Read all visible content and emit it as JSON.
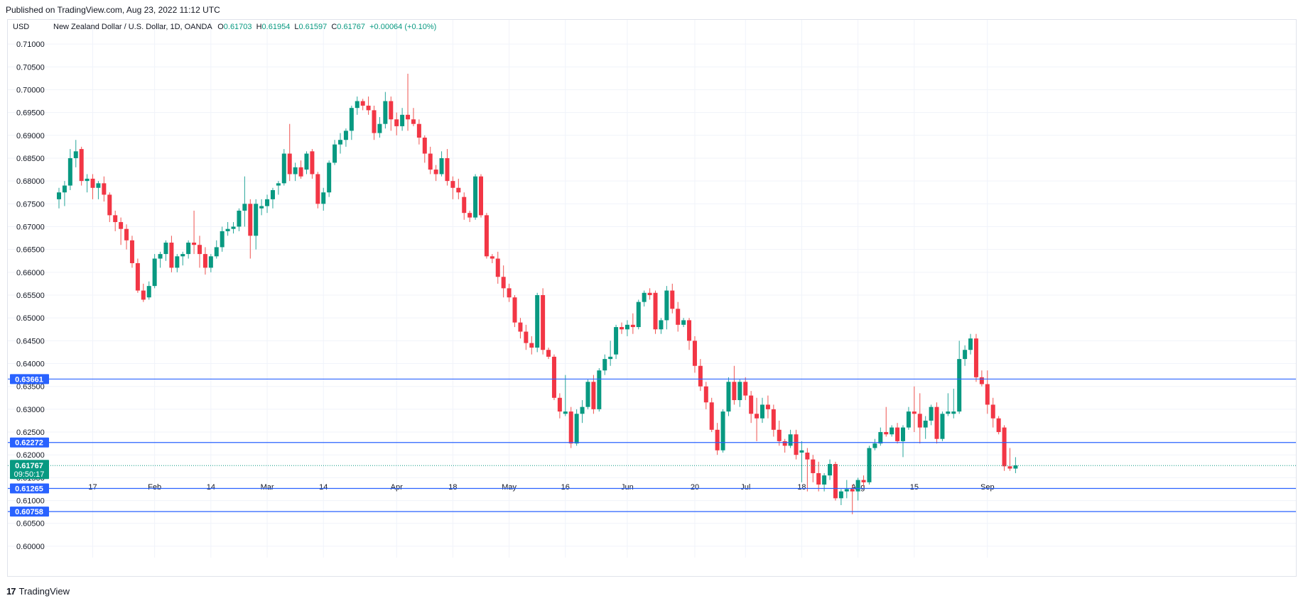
{
  "header": {
    "published": "Published on TradingView.com, Aug 23, 2022 11:12 UTC"
  },
  "footer": {
    "logo_mark": "17",
    "brand": "TradingView"
  },
  "colors": {
    "up": "#26a69a",
    "down": "#ef5350",
    "upbody": "#089981",
    "downbody": "#f23645",
    "hline": "#2962ff",
    "grid": "#f0f3fa",
    "text": "#131722"
  },
  "legend": {
    "currency": "USD",
    "symbol": "New Zealand Dollar / U.S. Dollar, 1D, OANDA",
    "o_label": "O",
    "o": "0.61703",
    "h_label": "H",
    "h": "0.61954",
    "l_label": "L",
    "l": "0.61597",
    "c_label": "C",
    "c": "0.61767",
    "change": "+0.00064 (+0.10%)"
  },
  "chart_data": {
    "type": "candlestick",
    "title": "New Zealand Dollar / U.S. Dollar, 1D, OANDA",
    "ylabel": "USD",
    "ylim": [
      0.5975,
      0.7125
    ],
    "yticks": [
      "0.71000",
      "0.70500",
      "0.70000",
      "0.69500",
      "0.69000",
      "0.68500",
      "0.68000",
      "0.67500",
      "0.67000",
      "0.66500",
      "0.66000",
      "0.65500",
      "0.65000",
      "0.64500",
      "0.64000",
      "0.63500",
      "0.63000",
      "0.62500",
      "0.62000",
      "0.61500",
      "0.61000",
      "0.60500",
      "0.60000"
    ],
    "xticks": [
      {
        "label": "17",
        "bar": 6
      },
      {
        "label": "Feb",
        "bar": 17
      },
      {
        "label": "14",
        "bar": 27
      },
      {
        "label": "Mar",
        "bar": 37
      },
      {
        "label": "14",
        "bar": 47
      },
      {
        "label": "Apr",
        "bar": 60
      },
      {
        "label": "18",
        "bar": 70
      },
      {
        "label": "May",
        "bar": 80
      },
      {
        "label": "16",
        "bar": 90
      },
      {
        "label": "Jun",
        "bar": 101
      },
      {
        "label": "20",
        "bar": 113
      },
      {
        "label": "Jul",
        "bar": 122
      },
      {
        "label": "18",
        "bar": 132
      },
      {
        "label": "Aug",
        "bar": 142
      },
      {
        "label": "15",
        "bar": 152
      },
      {
        "label": "Sep",
        "bar": 165
      }
    ],
    "last_price": "0.61767",
    "countdown": "09:50:17",
    "hlines": [
      {
        "value": 0.63661,
        "label": "0.63661"
      },
      {
        "value": 0.62272,
        "label": "0.62272"
      },
      {
        "value": 0.61265,
        "label": "0.61265"
      },
      {
        "value": 0.60758,
        "label": "0.60758"
      }
    ],
    "candles": [
      [
        0.676,
        0.6785,
        0.674,
        0.6775
      ],
      [
        0.6775,
        0.68,
        0.6745,
        0.679
      ],
      [
        0.679,
        0.687,
        0.678,
        0.685
      ],
      [
        0.685,
        0.689,
        0.683,
        0.6865
      ],
      [
        0.687,
        0.6875,
        0.679,
        0.68
      ],
      [
        0.68,
        0.6815,
        0.6775,
        0.6805
      ],
      [
        0.6805,
        0.6815,
        0.676,
        0.6785
      ],
      [
        0.6785,
        0.68,
        0.676,
        0.6795
      ],
      [
        0.6795,
        0.681,
        0.6755,
        0.677
      ],
      [
        0.677,
        0.6775,
        0.671,
        0.6725
      ],
      [
        0.6725,
        0.6735,
        0.669,
        0.671
      ],
      [
        0.671,
        0.672,
        0.666,
        0.6695
      ],
      [
        0.6695,
        0.6705,
        0.665,
        0.667
      ],
      [
        0.667,
        0.668,
        0.661,
        0.662
      ],
      [
        0.662,
        0.663,
        0.6555,
        0.656
      ],
      [
        0.656,
        0.6575,
        0.6535,
        0.654
      ],
      [
        0.6545,
        0.658,
        0.654,
        0.657
      ],
      [
        0.657,
        0.664,
        0.6565,
        0.663
      ],
      [
        0.663,
        0.6645,
        0.661,
        0.664
      ],
      [
        0.664,
        0.667,
        0.6625,
        0.6665
      ],
      [
        0.6665,
        0.668,
        0.66,
        0.661
      ],
      [
        0.661,
        0.664,
        0.66,
        0.6635
      ],
      [
        0.6635,
        0.6645,
        0.6615,
        0.664
      ],
      [
        0.664,
        0.667,
        0.663,
        0.6665
      ],
      [
        0.6665,
        0.6735,
        0.664,
        0.666
      ],
      [
        0.666,
        0.668,
        0.661,
        0.664
      ],
      [
        0.664,
        0.6655,
        0.6595,
        0.661
      ],
      [
        0.661,
        0.664,
        0.66,
        0.6635
      ],
      [
        0.6635,
        0.667,
        0.663,
        0.6655
      ],
      [
        0.6655,
        0.67,
        0.6645,
        0.669
      ],
      [
        0.669,
        0.671,
        0.668,
        0.6695
      ],
      [
        0.6695,
        0.671,
        0.6685,
        0.67
      ],
      [
        0.67,
        0.674,
        0.669,
        0.6735
      ],
      [
        0.6735,
        0.681,
        0.67,
        0.675
      ],
      [
        0.675,
        0.676,
        0.663,
        0.668
      ],
      [
        0.668,
        0.676,
        0.665,
        0.675
      ],
      [
        0.674,
        0.676,
        0.6725,
        0.6745
      ],
      [
        0.6745,
        0.677,
        0.673,
        0.676
      ],
      [
        0.676,
        0.6785,
        0.674,
        0.678
      ],
      [
        0.679,
        0.68,
        0.677,
        0.6795
      ],
      [
        0.6795,
        0.687,
        0.679,
        0.686
      ],
      [
        0.686,
        0.6925,
        0.68,
        0.6815
      ],
      [
        0.6815,
        0.684,
        0.68,
        0.683
      ],
      [
        0.683,
        0.6845,
        0.6805,
        0.681
      ],
      [
        0.6825,
        0.6865,
        0.6815,
        0.686
      ],
      [
        0.6865,
        0.687,
        0.6805,
        0.6815
      ],
      [
        0.6815,
        0.682,
        0.674,
        0.675
      ],
      [
        0.675,
        0.6785,
        0.6735,
        0.6775
      ],
      [
        0.6775,
        0.6845,
        0.6765,
        0.684
      ],
      [
        0.684,
        0.689,
        0.6835,
        0.688
      ],
      [
        0.688,
        0.6905,
        0.686,
        0.689
      ],
      [
        0.689,
        0.6915,
        0.6875,
        0.691
      ],
      [
        0.691,
        0.6965,
        0.689,
        0.696
      ],
      [
        0.696,
        0.6985,
        0.6945,
        0.6975
      ],
      [
        0.6975,
        0.698,
        0.6955,
        0.6965
      ],
      [
        0.6965,
        0.6985,
        0.6945,
        0.6955
      ],
      [
        0.6955,
        0.6965,
        0.689,
        0.6905
      ],
      [
        0.6905,
        0.694,
        0.6895,
        0.6925
      ],
      [
        0.6925,
        0.6995,
        0.6915,
        0.6975
      ],
      [
        0.6975,
        0.6985,
        0.691,
        0.6935
      ],
      [
        0.6935,
        0.695,
        0.69,
        0.692
      ],
      [
        0.692,
        0.696,
        0.691,
        0.6945
      ],
      [
        0.6945,
        0.7035,
        0.691,
        0.6935
      ],
      [
        0.6935,
        0.696,
        0.692,
        0.6925
      ],
      [
        0.6925,
        0.6935,
        0.688,
        0.6895
      ],
      [
        0.6895,
        0.69,
        0.684,
        0.686
      ],
      [
        0.686,
        0.6875,
        0.6815,
        0.6825
      ],
      [
        0.6825,
        0.6835,
        0.68,
        0.6815
      ],
      [
        0.6815,
        0.6865,
        0.681,
        0.685
      ],
      [
        0.685,
        0.687,
        0.679,
        0.68
      ],
      [
        0.68,
        0.681,
        0.676,
        0.6785
      ],
      [
        0.6785,
        0.6805,
        0.676,
        0.6775
      ],
      [
        0.6765,
        0.6775,
        0.6715,
        0.673
      ],
      [
        0.673,
        0.6735,
        0.671,
        0.672
      ],
      [
        0.672,
        0.6815,
        0.6715,
        0.681
      ],
      [
        0.681,
        0.6815,
        0.672,
        0.6725
      ],
      [
        0.6725,
        0.673,
        0.663,
        0.6635
      ],
      [
        0.6635,
        0.664,
        0.662,
        0.663
      ],
      [
        0.663,
        0.6645,
        0.6575,
        0.659
      ],
      [
        0.659,
        0.6615,
        0.6545,
        0.6565
      ],
      [
        0.6565,
        0.6575,
        0.6535,
        0.6545
      ],
      [
        0.6545,
        0.655,
        0.648,
        0.649
      ],
      [
        0.649,
        0.65,
        0.6455,
        0.647
      ],
      [
        0.647,
        0.6485,
        0.643,
        0.6445
      ],
      [
        0.6445,
        0.646,
        0.642,
        0.6435
      ],
      [
        0.6435,
        0.6555,
        0.6425,
        0.655
      ],
      [
        0.655,
        0.6565,
        0.642,
        0.643
      ],
      [
        0.643,
        0.6435,
        0.641,
        0.6415
      ],
      [
        0.6415,
        0.642,
        0.632,
        0.6325
      ],
      [
        0.6325,
        0.6335,
        0.628,
        0.6295
      ],
      [
        0.629,
        0.6375,
        0.6285,
        0.6295
      ],
      [
        0.6295,
        0.6305,
        0.6215,
        0.6225
      ],
      [
        0.6225,
        0.63,
        0.622,
        0.629
      ],
      [
        0.629,
        0.632,
        0.627,
        0.6305
      ],
      [
        0.6305,
        0.6365,
        0.63,
        0.636
      ],
      [
        0.636,
        0.6375,
        0.629,
        0.63
      ],
      [
        0.63,
        0.639,
        0.6295,
        0.6385
      ],
      [
        0.6385,
        0.642,
        0.6375,
        0.641
      ],
      [
        0.641,
        0.645,
        0.6395,
        0.6415
      ],
      [
        0.642,
        0.6485,
        0.641,
        0.648
      ],
      [
        0.648,
        0.649,
        0.6465,
        0.6475
      ],
      [
        0.6475,
        0.6495,
        0.646,
        0.6485
      ],
      [
        0.6485,
        0.651,
        0.6465,
        0.648
      ],
      [
        0.648,
        0.654,
        0.6475,
        0.6535
      ],
      [
        0.6535,
        0.656,
        0.6525,
        0.6555
      ],
      [
        0.6555,
        0.6565,
        0.654,
        0.655
      ],
      [
        0.6555,
        0.656,
        0.6465,
        0.6475
      ],
      [
        0.6475,
        0.65,
        0.6465,
        0.6495
      ],
      [
        0.6495,
        0.657,
        0.6475,
        0.656
      ],
      [
        0.656,
        0.6575,
        0.651,
        0.652
      ],
      [
        0.652,
        0.6535,
        0.647,
        0.6485
      ],
      [
        0.6485,
        0.65,
        0.648,
        0.6495
      ],
      [
        0.6495,
        0.65,
        0.643,
        0.645
      ],
      [
        0.645,
        0.646,
        0.638,
        0.6395
      ],
      [
        0.6395,
        0.641,
        0.634,
        0.635
      ],
      [
        0.635,
        0.636,
        0.63,
        0.6315
      ],
      [
        0.6315,
        0.6325,
        0.625,
        0.6255
      ],
      [
        0.6255,
        0.627,
        0.62,
        0.621
      ],
      [
        0.621,
        0.63,
        0.6205,
        0.6295
      ],
      [
        0.6295,
        0.637,
        0.6285,
        0.636
      ],
      [
        0.636,
        0.6395,
        0.631,
        0.632
      ],
      [
        0.632,
        0.6365,
        0.6305,
        0.636
      ],
      [
        0.636,
        0.637,
        0.632,
        0.633
      ],
      [
        0.633,
        0.634,
        0.627,
        0.629
      ],
      [
        0.629,
        0.6325,
        0.623,
        0.628
      ],
      [
        0.628,
        0.6325,
        0.627,
        0.631
      ],
      [
        0.631,
        0.633,
        0.628,
        0.63
      ],
      [
        0.63,
        0.631,
        0.624,
        0.6255
      ],
      [
        0.6255,
        0.6275,
        0.622,
        0.623
      ],
      [
        0.623,
        0.6235,
        0.6205,
        0.622
      ],
      [
        0.622,
        0.6255,
        0.6215,
        0.6245
      ],
      [
        0.6245,
        0.6255,
        0.619,
        0.62
      ],
      [
        0.6205,
        0.623,
        0.614,
        0.621
      ],
      [
        0.6205,
        0.6215,
        0.612,
        0.619
      ],
      [
        0.619,
        0.62,
        0.614,
        0.616
      ],
      [
        0.616,
        0.6185,
        0.612,
        0.6135
      ],
      [
        0.6135,
        0.616,
        0.612,
        0.6155
      ],
      [
        0.6155,
        0.619,
        0.6145,
        0.618
      ],
      [
        0.618,
        0.6185,
        0.61,
        0.6105
      ],
      [
        0.6105,
        0.6125,
        0.609,
        0.612
      ],
      [
        0.612,
        0.6145,
        0.6105,
        0.6125
      ],
      [
        0.6125,
        0.6135,
        0.607,
        0.612
      ],
      [
        0.612,
        0.615,
        0.61,
        0.6145
      ],
      [
        0.6145,
        0.6155,
        0.613,
        0.614
      ],
      [
        0.614,
        0.622,
        0.6135,
        0.6215
      ],
      [
        0.6215,
        0.6235,
        0.621,
        0.6225
      ],
      [
        0.6225,
        0.626,
        0.622,
        0.625
      ],
      [
        0.625,
        0.6305,
        0.624,
        0.6245
      ],
      [
        0.6245,
        0.6265,
        0.624,
        0.626
      ],
      [
        0.626,
        0.627,
        0.6225,
        0.623
      ],
      [
        0.623,
        0.6265,
        0.6195,
        0.626
      ],
      [
        0.626,
        0.6305,
        0.6255,
        0.6295
      ],
      [
        0.6295,
        0.635,
        0.625,
        0.629
      ],
      [
        0.629,
        0.6335,
        0.6225,
        0.626
      ],
      [
        0.626,
        0.6285,
        0.6235,
        0.6275
      ],
      [
        0.6275,
        0.631,
        0.6265,
        0.6305
      ],
      [
        0.6305,
        0.6315,
        0.6225,
        0.6235
      ],
      [
        0.6235,
        0.6295,
        0.623,
        0.629
      ],
      [
        0.629,
        0.6335,
        0.6285,
        0.6295
      ],
      [
        0.629,
        0.6345,
        0.628,
        0.6295
      ],
      [
        0.6295,
        0.645,
        0.629,
        0.641
      ],
      [
        0.641,
        0.644,
        0.6395,
        0.643
      ],
      [
        0.643,
        0.6465,
        0.642,
        0.6455
      ],
      [
        0.6455,
        0.6465,
        0.636,
        0.637
      ],
      [
        0.637,
        0.6385,
        0.635,
        0.6355
      ],
      [
        0.6355,
        0.6385,
        0.629,
        0.631
      ],
      [
        0.631,
        0.6325,
        0.626,
        0.628
      ],
      [
        0.628,
        0.6285,
        0.6245,
        0.625
      ],
      [
        0.626,
        0.6265,
        0.6165,
        0.6175
      ],
      [
        0.6175,
        0.6215,
        0.6165,
        0.617
      ],
      [
        0.617,
        0.6195,
        0.616,
        0.6177
      ]
    ]
  }
}
